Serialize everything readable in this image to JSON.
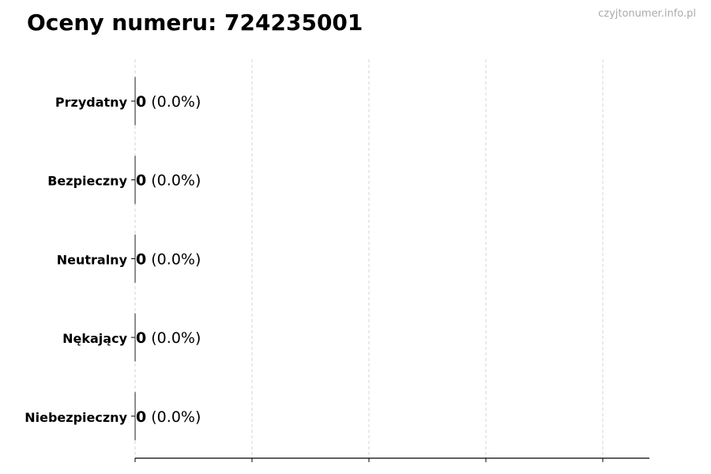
{
  "chart_data": {
    "type": "bar",
    "orientation": "horizontal",
    "title": "Oceny numeru: 724235001",
    "watermark": "czyjtonumer.info.pl",
    "categories": [
      "Przydatny",
      "Bezpieczny",
      "Neutralny",
      "Nękający",
      "Niebezpieczny"
    ],
    "values": [
      0,
      0,
      0,
      0,
      0
    ],
    "percent_labels": [
      "(0.0%)",
      "(0.0%)",
      "(0.0%)",
      "(0.0%)",
      "(0.0%)"
    ],
    "xlabel": "",
    "ylabel": "",
    "grid": "vertical dashed",
    "bar_edge_color": "#333333",
    "grid_color": "#cccccc"
  }
}
